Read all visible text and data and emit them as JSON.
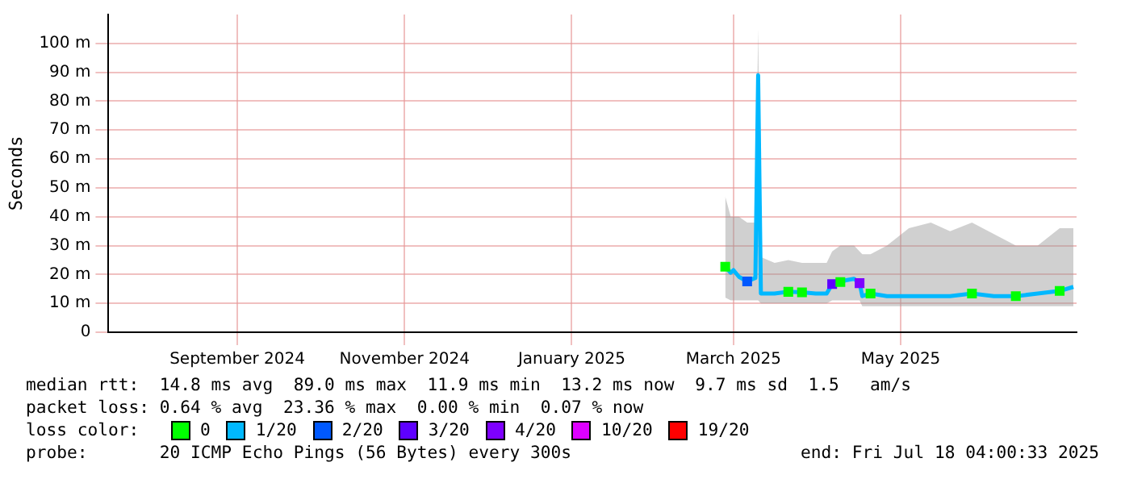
{
  "chart_data": {
    "type": "line",
    "ylabel": "Seconds",
    "legend_title": "loss color:",
    "legend": "bottom",
    "grid": true,
    "line_style": "solid",
    "x": [
      "2025-03-12",
      "2025-03-14",
      "2025-03-15",
      "2025-03-17",
      "2025-03-20",
      "2025-03-23",
      "2025-03-24",
      "2025-03-25",
      "2025-03-30",
      "2025-04-04",
      "2025-04-09",
      "2025-04-14",
      "2025-04-18",
      "2025-04-20",
      "2025-04-23",
      "2025-04-25",
      "2025-04-28",
      "2025-04-30",
      "2025-05-01",
      "2025-05-04",
      "2025-05-10",
      "2025-05-18",
      "2025-05-26",
      "2025-06-02",
      "2025-06-10",
      "2025-06-18",
      "2025-06-26",
      "2025-07-04",
      "2025-07-12",
      "2025-07-17"
    ],
    "xlim": [
      "2024-07-30",
      "2025-07-18T04:00"
    ],
    "xticks": [
      {
        "value": "2024-09-15",
        "label": "September 2024"
      },
      {
        "value": "2024-11-15",
        "label": "November 2024"
      },
      {
        "value": "2025-01-15",
        "label": "January 2025"
      },
      {
        "value": "2025-03-15",
        "label": "March 2025"
      },
      {
        "value": "2025-05-15",
        "label": "May 2025"
      }
    ],
    "ylim": [
      0,
      110
    ],
    "yticks": [
      0,
      {
        "value": 10,
        "label": "10 m"
      },
      {
        "value": 20,
        "label": "20 m"
      },
      {
        "value": 30,
        "label": "30 m"
      },
      {
        "value": 40,
        "label": "40 m"
      },
      {
        "value": 50,
        "label": "50 m"
      },
      {
        "value": 60,
        "label": "60 m"
      },
      {
        "value": 70,
        "label": "70 m"
      },
      {
        "value": 80,
        "label": "80 m"
      },
      {
        "value": 90,
        "label": "90 m"
      },
      {
        "value": 100,
        "label": "100 m"
      }
    ],
    "series": [
      {
        "name": "0",
        "type": "scatter",
        "color": "#00ff00",
        "marker": "square",
        "values": [
          22.7,
          null,
          null,
          null,
          null,
          null,
          null,
          null,
          null,
          14,
          13.8,
          null,
          null,
          null,
          17.4,
          null,
          null,
          null,
          null,
          13.4,
          null,
          null,
          null,
          null,
          13.4,
          null,
          12.5,
          null,
          14.3,
          null
        ]
      },
      {
        "name": "1/20",
        "color": "#00b8ff",
        "marker": "none",
        "values": [
          22.7,
          20.6,
          21.5,
          19.2,
          17.6,
          18.8,
          89,
          13.4,
          13.4,
          14,
          13.8,
          13.4,
          13.4,
          16.7,
          17.4,
          18,
          18.5,
          17,
          12.5,
          13.4,
          12.5,
          12.5,
          12.5,
          12.5,
          13.4,
          12.5,
          12.5,
          13.4,
          14.3,
          15.7
        ],
        "lower": [
          12,
          11,
          11,
          11,
          11,
          11,
          11,
          10,
          10,
          10,
          10,
          10,
          10,
          11,
          11,
          11,
          11,
          11,
          9,
          9,
          9,
          9,
          9,
          9,
          9,
          9,
          9,
          9,
          9,
          9
        ],
        "upper": [
          47,
          40,
          40,
          40,
          38,
          38,
          105,
          26,
          24,
          25,
          24,
          24,
          24,
          28,
          30,
          30,
          30,
          28,
          27,
          27,
          30,
          36,
          38,
          35,
          38,
          34,
          30,
          30,
          36,
          36
        ]
      },
      {
        "name": "2/20",
        "type": "scatter",
        "color": "#0059ff",
        "marker": "square",
        "values": [
          null,
          null,
          null,
          null,
          17.6,
          null,
          null,
          null,
          null,
          null,
          null,
          null,
          null,
          null,
          null,
          null,
          null,
          null,
          null,
          null,
          null,
          null,
          null,
          null,
          null,
          null,
          null,
          null,
          null,
          null
        ]
      },
      {
        "name": "3/20",
        "type": "scatter",
        "color": "#5e00ff",
        "marker": "square",
        "values": [
          null,
          null,
          null,
          null,
          null,
          null,
          null,
          null,
          null,
          null,
          null,
          null,
          null,
          16.7,
          null,
          null,
          null,
          null,
          null,
          null,
          null,
          null,
          null,
          null,
          null,
          null,
          null,
          null,
          null,
          null
        ]
      },
      {
        "name": "4/20",
        "type": "scatter",
        "color": "#7e00ff",
        "marker": "square",
        "values": [
          null,
          null,
          null,
          null,
          null,
          null,
          null,
          null,
          null,
          null,
          null,
          null,
          null,
          null,
          null,
          null,
          null,
          17,
          null,
          null,
          null,
          null,
          null,
          null,
          null,
          null,
          null,
          null,
          null,
          null
        ]
      },
      {
        "name": "10/20",
        "type": "scatter",
        "color": "#dd00ff",
        "marker": "square",
        "values": [
          null,
          null,
          null,
          null,
          null,
          null,
          null,
          null,
          null,
          null,
          null,
          null,
          null,
          null,
          null,
          null,
          null,
          null,
          null,
          null,
          null,
          null,
          null,
          null,
          null,
          null,
          null,
          null,
          null,
          null
        ]
      },
      {
        "name": "19/20",
        "type": "scatter",
        "color": "#ff0000",
        "marker": "square",
        "values": [
          null,
          null,
          null,
          null,
          null,
          null,
          null,
          null,
          null,
          null,
          null,
          null,
          null,
          null,
          null,
          null,
          null,
          null,
          null,
          null,
          null,
          null,
          null,
          null,
          null,
          null,
          null,
          null,
          null,
          null
        ]
      }
    ],
    "annotations": [
      "median rtt:  14.8 ms avg  89.0 ms max  11.9 ms min  13.2 ms now  9.7 ms sd  1.5   am/s",
      "packet loss: 0.64 % avg  23.36 % max  0.00 % min  0.07 % now",
      "probe:       20 ICMP Echo Pings (56 Bytes) every 300s",
      "end: Fri Jul 18 04:00:33 2025"
    ]
  }
}
